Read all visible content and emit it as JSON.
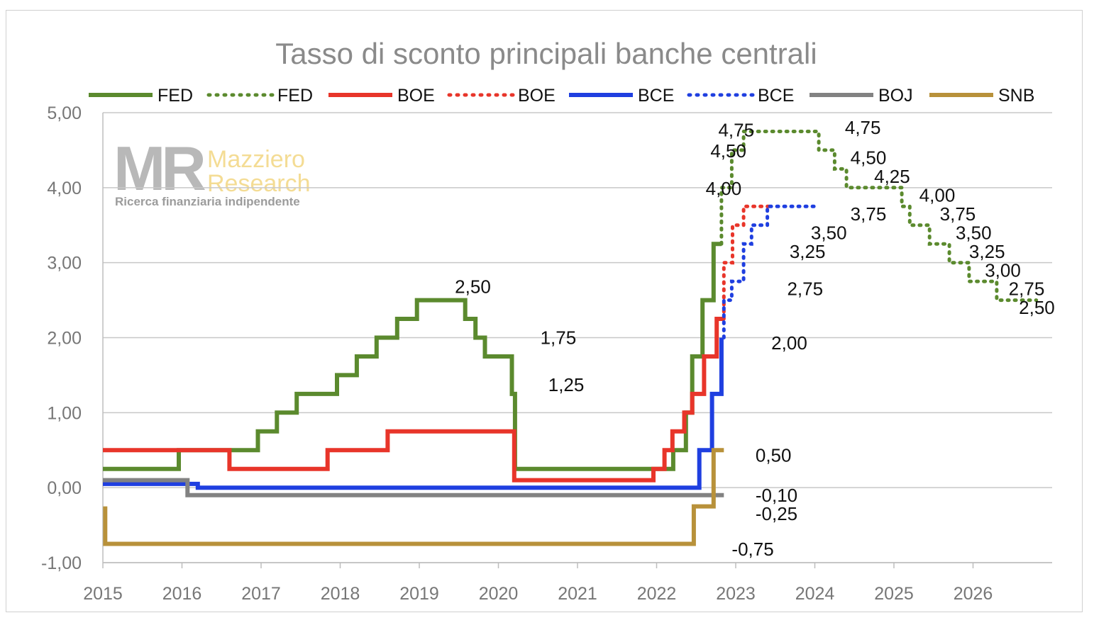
{
  "chart_data": {
    "type": "line",
    "title": "Tasso di sconto principali banche centrali",
    "xlabel": "",
    "ylabel": "",
    "xlim": [
      2015,
      2027
    ],
    "ylim": [
      -1,
      5
    ],
    "x_ticks": [
      "2015",
      "2016",
      "2017",
      "2018",
      "2019",
      "2020",
      "2021",
      "2022",
      "2023",
      "2024",
      "2025",
      "2026"
    ],
    "y_ticks": [
      "-1,00",
      "0,00",
      "1,00",
      "2,00",
      "3,00",
      "4,00",
      "5,00"
    ],
    "grid": "horizontal",
    "legend_position": "top",
    "legend": [
      {
        "label": "FED",
        "color": "#5b8a2e",
        "style": "solid"
      },
      {
        "label": "FED",
        "color": "#5b8a2e",
        "style": "dotted"
      },
      {
        "label": "BOE",
        "color": "#e8352a",
        "style": "solid"
      },
      {
        "label": "BOE",
        "color": "#e8352a",
        "style": "dotted"
      },
      {
        "label": "BCE",
        "color": "#1f3fe0",
        "style": "solid"
      },
      {
        "label": "BCE",
        "color": "#1f3fe0",
        "style": "dotted"
      },
      {
        "label": "BOJ",
        "color": "#828282",
        "style": "solid"
      },
      {
        "label": "SNB",
        "color": "#b8913a",
        "style": "solid"
      }
    ],
    "series": [
      {
        "name": "FED",
        "color": "#5b8a2e",
        "style": "solid",
        "points": [
          [
            2015.0,
            0.25
          ],
          [
            2015.96,
            0.25
          ],
          [
            2015.96,
            0.5
          ],
          [
            2016.96,
            0.5
          ],
          [
            2016.96,
            0.75
          ],
          [
            2017.2,
            0.75
          ],
          [
            2017.2,
            1.0
          ],
          [
            2017.45,
            1.0
          ],
          [
            2017.45,
            1.25
          ],
          [
            2017.96,
            1.25
          ],
          [
            2017.96,
            1.5
          ],
          [
            2018.21,
            1.5
          ],
          [
            2018.21,
            1.75
          ],
          [
            2018.46,
            1.75
          ],
          [
            2018.46,
            2.0
          ],
          [
            2018.72,
            2.0
          ],
          [
            2018.72,
            2.25
          ],
          [
            2018.97,
            2.25
          ],
          [
            2018.97,
            2.5
          ],
          [
            2019.58,
            2.5
          ],
          [
            2019.58,
            2.25
          ],
          [
            2019.71,
            2.25
          ],
          [
            2019.71,
            2.0
          ],
          [
            2019.83,
            2.0
          ],
          [
            2019.83,
            1.75
          ],
          [
            2020.17,
            1.75
          ],
          [
            2020.17,
            1.25
          ],
          [
            2020.21,
            1.25
          ],
          [
            2020.21,
            0.25
          ],
          [
            2022.21,
            0.25
          ],
          [
            2022.21,
            0.5
          ],
          [
            2022.37,
            0.5
          ],
          [
            2022.37,
            1.0
          ],
          [
            2022.45,
            1.0
          ],
          [
            2022.45,
            1.75
          ],
          [
            2022.58,
            1.75
          ],
          [
            2022.58,
            2.5
          ],
          [
            2022.72,
            2.5
          ],
          [
            2022.72,
            3.25
          ],
          [
            2022.82,
            3.25
          ]
        ]
      },
      {
        "name": "FED",
        "color": "#5b8a2e",
        "style": "dotted",
        "points": [
          [
            2022.82,
            3.25
          ],
          [
            2022.82,
            4.0
          ],
          [
            2022.95,
            4.0
          ],
          [
            2022.95,
            4.5
          ],
          [
            2023.1,
            4.5
          ],
          [
            2023.1,
            4.75
          ],
          [
            2024.05,
            4.75
          ],
          [
            2024.05,
            4.5
          ],
          [
            2024.25,
            4.5
          ],
          [
            2024.25,
            4.25
          ],
          [
            2024.4,
            4.25
          ],
          [
            2024.4,
            4.0
          ],
          [
            2025.1,
            4.0
          ],
          [
            2025.1,
            3.75
          ],
          [
            2025.2,
            3.75
          ],
          [
            2025.2,
            3.5
          ],
          [
            2025.45,
            3.5
          ],
          [
            2025.45,
            3.25
          ],
          [
            2025.7,
            3.25
          ],
          [
            2025.7,
            3.0
          ],
          [
            2025.95,
            3.0
          ],
          [
            2025.95,
            2.75
          ],
          [
            2026.3,
            2.75
          ],
          [
            2026.3,
            2.5
          ],
          [
            2026.8,
            2.5
          ]
        ]
      },
      {
        "name": "BOE",
        "color": "#e8352a",
        "style": "solid",
        "points": [
          [
            2015.0,
            0.5
          ],
          [
            2016.6,
            0.5
          ],
          [
            2016.6,
            0.25
          ],
          [
            2017.84,
            0.25
          ],
          [
            2017.84,
            0.5
          ],
          [
            2018.6,
            0.5
          ],
          [
            2018.6,
            0.75
          ],
          [
            2020.2,
            0.75
          ],
          [
            2020.2,
            0.1
          ],
          [
            2021.96,
            0.1
          ],
          [
            2021.96,
            0.25
          ],
          [
            2022.1,
            0.25
          ],
          [
            2022.1,
            0.5
          ],
          [
            2022.2,
            0.5
          ],
          [
            2022.2,
            0.75
          ],
          [
            2022.35,
            0.75
          ],
          [
            2022.35,
            1.0
          ],
          [
            2022.45,
            1.0
          ],
          [
            2022.45,
            1.25
          ],
          [
            2022.6,
            1.25
          ],
          [
            2022.6,
            1.75
          ],
          [
            2022.76,
            1.75
          ],
          [
            2022.76,
            2.25
          ],
          [
            2022.85,
            2.25
          ]
        ]
      },
      {
        "name": "BOE",
        "color": "#e8352a",
        "style": "dotted",
        "points": [
          [
            2022.85,
            2.25
          ],
          [
            2022.85,
            3.0
          ],
          [
            2022.96,
            3.0
          ],
          [
            2022.96,
            3.5
          ],
          [
            2023.1,
            3.5
          ],
          [
            2023.1,
            3.75
          ],
          [
            2023.45,
            3.75
          ]
        ]
      },
      {
        "name": "BCE",
        "color": "#1f3fe0",
        "style": "solid",
        "points": [
          [
            2015.0,
            0.05
          ],
          [
            2016.2,
            0.05
          ],
          [
            2016.2,
            0.0
          ],
          [
            2022.54,
            0.0
          ],
          [
            2022.54,
            0.5
          ],
          [
            2022.7,
            0.5
          ],
          [
            2022.7,
            1.25
          ],
          [
            2022.82,
            1.25
          ],
          [
            2022.82,
            2.0
          ]
        ]
      },
      {
        "name": "BCE",
        "color": "#1f3fe0",
        "style": "dotted",
        "points": [
          [
            2022.85,
            2.0
          ],
          [
            2022.85,
            2.5
          ],
          [
            2022.95,
            2.5
          ],
          [
            2022.95,
            2.75
          ],
          [
            2023.1,
            2.75
          ],
          [
            2023.1,
            3.25
          ],
          [
            2023.2,
            3.25
          ],
          [
            2023.2,
            3.5
          ],
          [
            2023.4,
            3.5
          ],
          [
            2023.4,
            3.75
          ],
          [
            2024.05,
            3.75
          ]
        ]
      },
      {
        "name": "BOJ",
        "color": "#828282",
        "style": "solid",
        "points": [
          [
            2015.0,
            0.1
          ],
          [
            2016.07,
            0.1
          ],
          [
            2016.07,
            -0.1
          ],
          [
            2022.85,
            -0.1
          ]
        ]
      },
      {
        "name": "SNB",
        "color": "#b8913a",
        "style": "solid",
        "points": [
          [
            2015.03,
            -0.25
          ],
          [
            2015.03,
            -0.75
          ],
          [
            2022.47,
            -0.75
          ],
          [
            2022.47,
            -0.25
          ],
          [
            2022.72,
            -0.25
          ],
          [
            2022.72,
            0.5
          ],
          [
            2022.85,
            0.5
          ]
        ]
      }
    ],
    "annotations": [
      {
        "text": "2,50",
        "x": 2019.45,
        "y": 2.68,
        "color": "#111"
      },
      {
        "text": "1,75",
        "x": 2020.53,
        "y": 2.0,
        "color": "#111"
      },
      {
        "text": "1,25",
        "x": 2020.63,
        "y": 1.37,
        "color": "#111"
      },
      {
        "text": "4,75",
        "x": 2022.78,
        "y": 4.77,
        "color": "#111"
      },
      {
        "text": "4,50",
        "x": 2022.68,
        "y": 4.49,
        "color": "#111"
      },
      {
        "text": "4,00",
        "x": 2022.62,
        "y": 3.99,
        "color": "#111"
      },
      {
        "text": "4,75",
        "x": 2024.38,
        "y": 4.8,
        "color": "#111"
      },
      {
        "text": "4,50",
        "x": 2024.45,
        "y": 4.4,
        "color": "#111"
      },
      {
        "text": "4,25",
        "x": 2024.75,
        "y": 4.15,
        "color": "#111"
      },
      {
        "text": "4,00",
        "x": 2025.32,
        "y": 3.9,
        "color": "#111"
      },
      {
        "text": "3,75",
        "x": 2025.58,
        "y": 3.65,
        "color": "#111"
      },
      {
        "text": "3,50",
        "x": 2025.78,
        "y": 3.4,
        "color": "#111"
      },
      {
        "text": "3,25",
        "x": 2025.95,
        "y": 3.15,
        "color": "#111"
      },
      {
        "text": "3,00",
        "x": 2026.15,
        "y": 2.9,
        "color": "#111"
      },
      {
        "text": "2,75",
        "x": 2026.45,
        "y": 2.65,
        "color": "#111"
      },
      {
        "text": "2,50",
        "x": 2026.58,
        "y": 2.4,
        "color": "#111"
      },
      {
        "text": "3,75",
        "x": 2024.45,
        "y": 3.65,
        "color": "#111"
      },
      {
        "text": "3,50",
        "x": 2023.95,
        "y": 3.4,
        "color": "#111"
      },
      {
        "text": "3,25",
        "x": 2023.68,
        "y": 3.15,
        "color": "#111"
      },
      {
        "text": "2,75",
        "x": 2023.65,
        "y": 2.65,
        "color": "#111"
      },
      {
        "text": "2,00",
        "x": 2023.45,
        "y": 1.93,
        "color": "#111"
      },
      {
        "text": "0,50",
        "x": 2023.25,
        "y": 0.43,
        "color": "#111"
      },
      {
        "text": "-0,10",
        "x": 2023.25,
        "y": -0.1,
        "color": "#111"
      },
      {
        "text": "-0,25",
        "x": 2023.25,
        "y": -0.35,
        "color": "#111"
      },
      {
        "text": "-0,75",
        "x": 2022.95,
        "y": -0.82,
        "color": "#111"
      }
    ]
  },
  "watermark": {
    "mark": "MR",
    "name_line1": "Mazziero",
    "name_line2": "Research",
    "tagline": "Ricerca finanziaria indipendente"
  }
}
